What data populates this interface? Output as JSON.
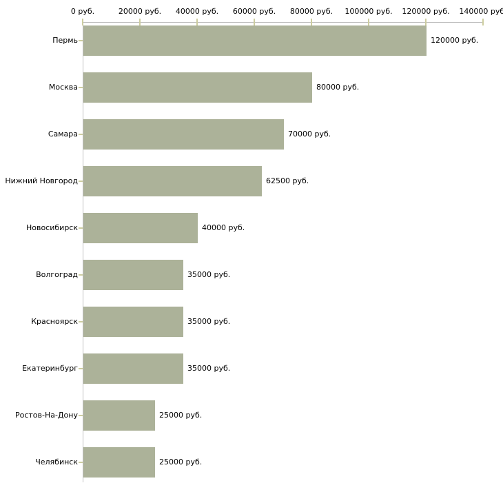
{
  "chart_data": {
    "type": "bar",
    "orientation": "horizontal",
    "title": "",
    "xlabel": "",
    "ylabel": "",
    "categories": [
      "Пермь",
      "Москва",
      "Самара",
      "Нижний Новгород",
      "Новосибирск",
      "Волгоград",
      "Красноярск",
      "Екатеринбург",
      "Ростов-На-Дону",
      "Челябинск"
    ],
    "values": [
      120000,
      80000,
      70000,
      62500,
      40000,
      35000,
      35000,
      35000,
      25000,
      25000
    ],
    "value_labels": [
      "120000 руб.",
      "80000 руб.",
      "70000 руб.",
      "62500 руб.",
      "40000 руб.",
      "35000 руб.",
      "35000 руб.",
      "35000 руб.",
      "25000 руб.",
      "25000 руб."
    ],
    "x_ticks": [
      {
        "value": 0,
        "label": "0 руб."
      },
      {
        "value": 20000,
        "label": "20000 руб."
      },
      {
        "value": 40000,
        "label": "40000 руб."
      },
      {
        "value": 60000,
        "label": "60000 руб."
      },
      {
        "value": 80000,
        "label": "80000 руб."
      },
      {
        "value": 100000,
        "label": "100000 руб."
      },
      {
        "value": 120000,
        "label": "120000 руб."
      },
      {
        "value": 140000,
        "label": "140000 руб."
      }
    ],
    "xlim": [
      0,
      140000
    ],
    "grid": false,
    "legend": false,
    "axis_position": "top",
    "colors": {
      "bar": "#acb299",
      "axis": "#bebebe",
      "tick": "#cdcda0",
      "text": "#000000",
      "background": "#ffffff"
    }
  }
}
